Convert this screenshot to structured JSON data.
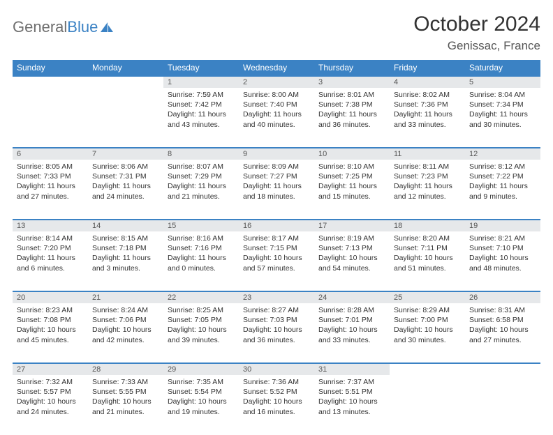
{
  "logo": {
    "text1": "General",
    "text2": "Blue"
  },
  "header": {
    "title": "October 2024",
    "location": "Genissac, France"
  },
  "colors": {
    "header_blue": "#3b82c4",
    "daynum_bg": "#e6e8ea",
    "text": "#333333",
    "logo_gray": "#6f6f6f"
  },
  "weekdays": [
    "Sunday",
    "Monday",
    "Tuesday",
    "Wednesday",
    "Thursday",
    "Friday",
    "Saturday"
  ],
  "weeks": [
    [
      null,
      null,
      {
        "n": "1",
        "sr": "Sunrise: 7:59 AM",
        "ss": "Sunset: 7:42 PM",
        "d1": "Daylight: 11 hours",
        "d2": "and 43 minutes."
      },
      {
        "n": "2",
        "sr": "Sunrise: 8:00 AM",
        "ss": "Sunset: 7:40 PM",
        "d1": "Daylight: 11 hours",
        "d2": "and 40 minutes."
      },
      {
        "n": "3",
        "sr": "Sunrise: 8:01 AM",
        "ss": "Sunset: 7:38 PM",
        "d1": "Daylight: 11 hours",
        "d2": "and 36 minutes."
      },
      {
        "n": "4",
        "sr": "Sunrise: 8:02 AM",
        "ss": "Sunset: 7:36 PM",
        "d1": "Daylight: 11 hours",
        "d2": "and 33 minutes."
      },
      {
        "n": "5",
        "sr": "Sunrise: 8:04 AM",
        "ss": "Sunset: 7:34 PM",
        "d1": "Daylight: 11 hours",
        "d2": "and 30 minutes."
      }
    ],
    [
      {
        "n": "6",
        "sr": "Sunrise: 8:05 AM",
        "ss": "Sunset: 7:33 PM",
        "d1": "Daylight: 11 hours",
        "d2": "and 27 minutes."
      },
      {
        "n": "7",
        "sr": "Sunrise: 8:06 AM",
        "ss": "Sunset: 7:31 PM",
        "d1": "Daylight: 11 hours",
        "d2": "and 24 minutes."
      },
      {
        "n": "8",
        "sr": "Sunrise: 8:07 AM",
        "ss": "Sunset: 7:29 PM",
        "d1": "Daylight: 11 hours",
        "d2": "and 21 minutes."
      },
      {
        "n": "9",
        "sr": "Sunrise: 8:09 AM",
        "ss": "Sunset: 7:27 PM",
        "d1": "Daylight: 11 hours",
        "d2": "and 18 minutes."
      },
      {
        "n": "10",
        "sr": "Sunrise: 8:10 AM",
        "ss": "Sunset: 7:25 PM",
        "d1": "Daylight: 11 hours",
        "d2": "and 15 minutes."
      },
      {
        "n": "11",
        "sr": "Sunrise: 8:11 AM",
        "ss": "Sunset: 7:23 PM",
        "d1": "Daylight: 11 hours",
        "d2": "and 12 minutes."
      },
      {
        "n": "12",
        "sr": "Sunrise: 8:12 AM",
        "ss": "Sunset: 7:22 PM",
        "d1": "Daylight: 11 hours",
        "d2": "and 9 minutes."
      }
    ],
    [
      {
        "n": "13",
        "sr": "Sunrise: 8:14 AM",
        "ss": "Sunset: 7:20 PM",
        "d1": "Daylight: 11 hours",
        "d2": "and 6 minutes."
      },
      {
        "n": "14",
        "sr": "Sunrise: 8:15 AM",
        "ss": "Sunset: 7:18 PM",
        "d1": "Daylight: 11 hours",
        "d2": "and 3 minutes."
      },
      {
        "n": "15",
        "sr": "Sunrise: 8:16 AM",
        "ss": "Sunset: 7:16 PM",
        "d1": "Daylight: 11 hours",
        "d2": "and 0 minutes."
      },
      {
        "n": "16",
        "sr": "Sunrise: 8:17 AM",
        "ss": "Sunset: 7:15 PM",
        "d1": "Daylight: 10 hours",
        "d2": "and 57 minutes."
      },
      {
        "n": "17",
        "sr": "Sunrise: 8:19 AM",
        "ss": "Sunset: 7:13 PM",
        "d1": "Daylight: 10 hours",
        "d2": "and 54 minutes."
      },
      {
        "n": "18",
        "sr": "Sunrise: 8:20 AM",
        "ss": "Sunset: 7:11 PM",
        "d1": "Daylight: 10 hours",
        "d2": "and 51 minutes."
      },
      {
        "n": "19",
        "sr": "Sunrise: 8:21 AM",
        "ss": "Sunset: 7:10 PM",
        "d1": "Daylight: 10 hours",
        "d2": "and 48 minutes."
      }
    ],
    [
      {
        "n": "20",
        "sr": "Sunrise: 8:23 AM",
        "ss": "Sunset: 7:08 PM",
        "d1": "Daylight: 10 hours",
        "d2": "and 45 minutes."
      },
      {
        "n": "21",
        "sr": "Sunrise: 8:24 AM",
        "ss": "Sunset: 7:06 PM",
        "d1": "Daylight: 10 hours",
        "d2": "and 42 minutes."
      },
      {
        "n": "22",
        "sr": "Sunrise: 8:25 AM",
        "ss": "Sunset: 7:05 PM",
        "d1": "Daylight: 10 hours",
        "d2": "and 39 minutes."
      },
      {
        "n": "23",
        "sr": "Sunrise: 8:27 AM",
        "ss": "Sunset: 7:03 PM",
        "d1": "Daylight: 10 hours",
        "d2": "and 36 minutes."
      },
      {
        "n": "24",
        "sr": "Sunrise: 8:28 AM",
        "ss": "Sunset: 7:01 PM",
        "d1": "Daylight: 10 hours",
        "d2": "and 33 minutes."
      },
      {
        "n": "25",
        "sr": "Sunrise: 8:29 AM",
        "ss": "Sunset: 7:00 PM",
        "d1": "Daylight: 10 hours",
        "d2": "and 30 minutes."
      },
      {
        "n": "26",
        "sr": "Sunrise: 8:31 AM",
        "ss": "Sunset: 6:58 PM",
        "d1": "Daylight: 10 hours",
        "d2": "and 27 minutes."
      }
    ],
    [
      {
        "n": "27",
        "sr": "Sunrise: 7:32 AM",
        "ss": "Sunset: 5:57 PM",
        "d1": "Daylight: 10 hours",
        "d2": "and 24 minutes."
      },
      {
        "n": "28",
        "sr": "Sunrise: 7:33 AM",
        "ss": "Sunset: 5:55 PM",
        "d1": "Daylight: 10 hours",
        "d2": "and 21 minutes."
      },
      {
        "n": "29",
        "sr": "Sunrise: 7:35 AM",
        "ss": "Sunset: 5:54 PM",
        "d1": "Daylight: 10 hours",
        "d2": "and 19 minutes."
      },
      {
        "n": "30",
        "sr": "Sunrise: 7:36 AM",
        "ss": "Sunset: 5:52 PM",
        "d1": "Daylight: 10 hours",
        "d2": "and 16 minutes."
      },
      {
        "n": "31",
        "sr": "Sunrise: 7:37 AM",
        "ss": "Sunset: 5:51 PM",
        "d1": "Daylight: 10 hours",
        "d2": "and 13 minutes."
      },
      null,
      null
    ]
  ]
}
